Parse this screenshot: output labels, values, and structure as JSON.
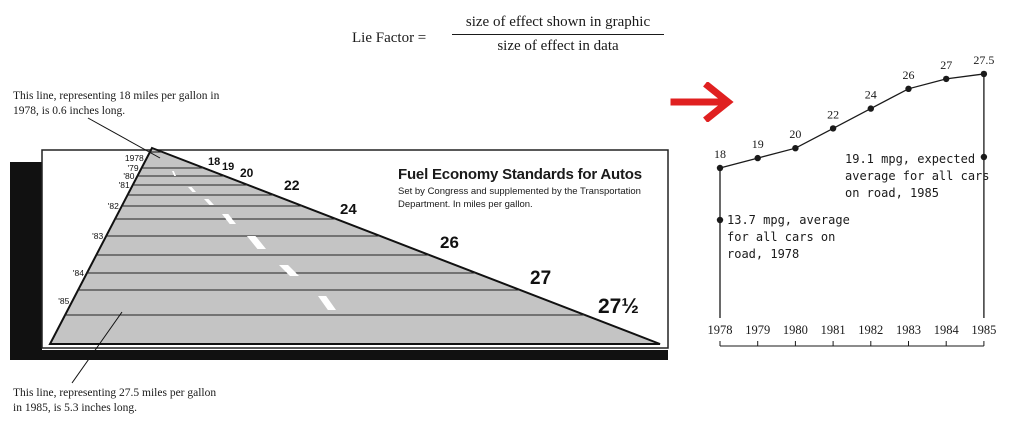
{
  "formula": {
    "lhs": "Lie Factor =",
    "numerator": "size of effect shown in graphic",
    "denominator": "size of effect in data"
  },
  "callouts": {
    "top": "This line, representing 18 miles per gallon in 1978, is 0.6 inches long.",
    "bottom": "This line, representing 27.5 miles per gallon in 1985, is 5.3 inches long."
  },
  "arrow": {
    "icon": "right-arrow-icon",
    "color": "#e02020"
  },
  "chart_data": [
    {
      "type": "bar",
      "title": "Fuel Economy Standards for Autos",
      "subtitle": "Set by Congress and supplemented by the Transportation Department. In miles per gallon.",
      "categories": [
        "1978",
        "'79",
        "'80",
        "'81",
        "'82",
        "'83",
        "'84",
        "'85"
      ],
      "value_labels": [
        "18",
        "19",
        "20",
        "22",
        "24",
        "26",
        "27",
        "27½"
      ],
      "values": [
        18,
        19,
        20,
        22,
        24,
        26,
        27,
        27.5
      ],
      "colors": {
        "road": "#c4c4c4",
        "shadow": "#111111",
        "lane": "#ffffff"
      }
    },
    {
      "type": "line",
      "x": [
        "1978",
        "1979",
        "1980",
        "1981",
        "1982",
        "1983",
        "1984",
        "1985"
      ],
      "y": [
        18,
        19,
        20,
        22,
        24,
        26,
        27,
        27.5
      ],
      "value_labels": [
        "18",
        "19",
        "20",
        "22",
        "24",
        "26",
        "27",
        "27.5"
      ],
      "annotations": [
        {
          "x": "1978",
          "y": 13.7,
          "text": [
            "13.7 mpg, average",
            "for all cars on",
            "road, 1978"
          ]
        },
        {
          "x": "1985",
          "y": 19.1,
          "text": [
            "19.1 mpg, expected",
            "average for all cars",
            "on road, 1985"
          ]
        }
      ]
    }
  ]
}
